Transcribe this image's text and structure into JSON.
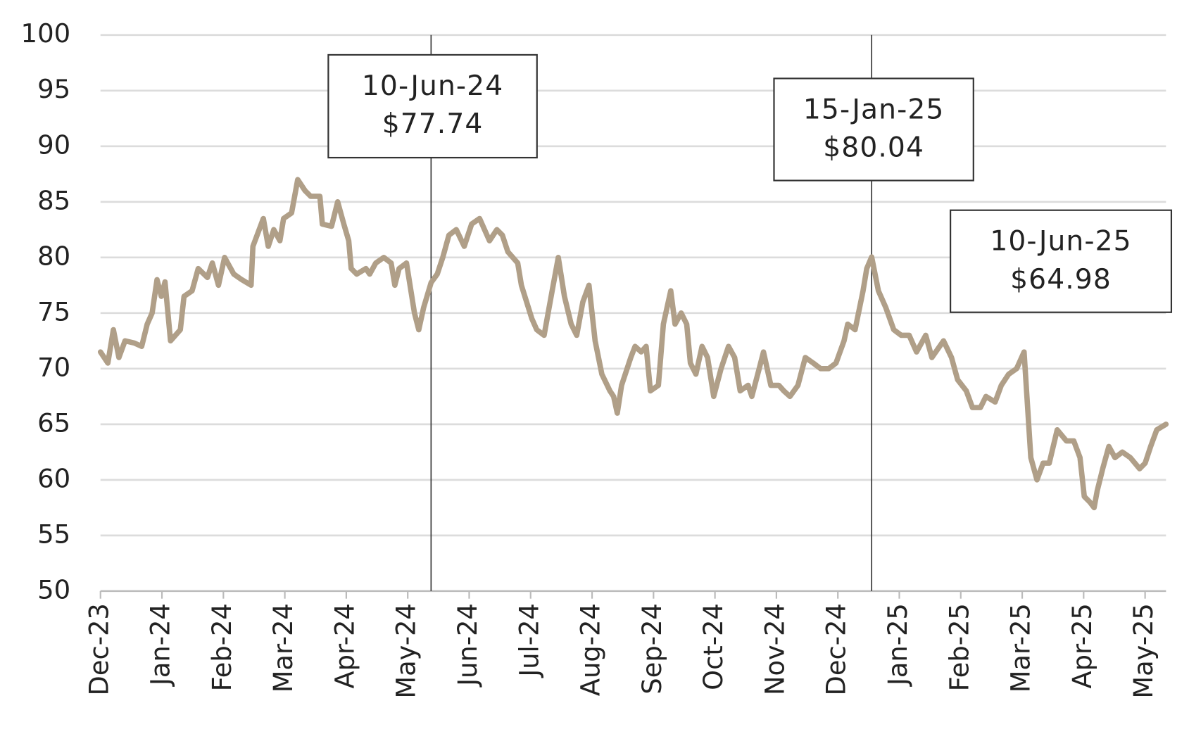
{
  "chart_data": {
    "type": "line",
    "x": [
      0,
      0.12,
      0.21,
      0.3,
      0.4,
      0.55,
      0.67,
      0.76,
      0.84,
      0.92,
      0.99,
      1.05,
      1.14,
      1.3,
      1.36,
      1.49,
      1.59,
      1.74,
      1.82,
      1.92,
      2.02,
      2.17,
      2.3,
      2.45,
      2.48,
      2.65,
      2.73,
      2.82,
      2.92,
      2.98,
      3.11,
      3.21,
      3.33,
      3.42,
      3.57,
      3.61,
      3.76,
      3.86,
      3.96,
      4.04,
      4.08,
      4.17,
      4.32,
      4.38,
      4.48,
      4.61,
      4.73,
      4.79,
      4.86,
      4.98,
      5.11,
      5.18,
      5.26,
      5.38,
      5.48,
      5.57,
      5.67,
      5.79,
      5.92,
      6.04,
      6.17,
      6.33,
      6.45,
      6.54,
      6.63,
      6.79,
      6.85,
      7.02,
      7.1,
      7.22,
      7.35,
      7.45,
      7.55,
      7.66,
      7.75,
      7.85,
      7.95,
      8.05,
      8.16,
      8.29,
      8.35,
      8.41,
      8.48,
      8.63,
      8.7,
      8.8,
      8.88,
      8.95,
      9.08,
      9.16,
      9.28,
      9.35,
      9.45,
      9.54,
      9.6,
      9.69,
      9.79,
      9.88,
      9.98,
      10.1,
      10.22,
      10.32,
      10.41,
      10.54,
      10.6,
      10.72,
      10.79,
      10.91,
      11.04,
      11.12,
      11.22,
      11.35,
      11.47,
      11.6,
      11.72,
      11.85,
      11.97,
      12.1,
      12.16,
      12.28,
      12.41,
      12.47,
      12.55,
      12.66,
      12.78,
      12.91,
      13.03,
      13.16,
      13.28,
      13.43,
      13.53,
      13.72,
      13.85,
      13.95,
      14.09,
      14.19,
      14.32,
      14.41,
      14.56,
      14.66,
      14.78,
      14.91,
      15.03,
      15.14,
      15.24,
      15.34,
      15.44,
      15.57,
      15.72,
      15.84,
      15.94,
      16.01,
      16.1,
      16.17,
      16.22,
      16.31,
      16.41,
      16.51,
      16.63,
      16.76,
      16.91,
      17.0,
      17.09,
      17.19,
      17.34
    ],
    "series": [
      {
        "color": "#b09f88",
        "values": [
          71.5,
          70.5,
          73.5,
          71,
          72.5,
          72.3,
          72,
          74,
          75,
          78,
          76.5,
          77.8,
          72.5,
          73.5,
          76.5,
          77,
          79,
          78.2,
          79.5,
          77.5,
          80,
          78.5,
          78,
          77.5,
          81,
          83.5,
          81,
          82.5,
          81.5,
          83.5,
          84,
          87,
          86,
          85.5,
          85.5,
          83,
          82.8,
          85,
          83,
          81.5,
          79,
          78.5,
          79,
          78.5,
          79.5,
          80,
          79.5,
          77.5,
          79,
          79.5,
          75,
          73.5,
          75.5,
          77.74,
          78.5,
          80,
          82,
          82.5,
          81,
          83,
          83.5,
          81.5,
          82.5,
          82,
          80.5,
          79.5,
          77.5,
          74.5,
          73.5,
          73,
          77,
          80,
          76.5,
          74,
          73,
          76,
          77.5,
          72.5,
          69.5,
          68,
          67.5,
          66,
          68.5,
          71,
          72,
          71.5,
          72,
          68,
          68.5,
          74,
          77,
          74,
          75,
          74,
          70.5,
          69.5,
          72,
          71,
          67.5,
          70,
          72,
          71,
          68,
          68.5,
          67.5,
          70,
          71.5,
          68.5,
          68.5,
          68,
          67.5,
          68.5,
          71,
          70.5,
          70,
          70,
          70.5,
          72.5,
          74,
          73.5,
          77,
          79,
          80.04,
          77,
          75.5,
          73.5,
          73,
          73,
          71.5,
          73,
          71,
          72.5,
          71,
          69,
          68,
          66.5,
          66.5,
          67.5,
          67,
          68.5,
          69.5,
          70,
          71.5,
          62,
          60,
          61.5,
          61.5,
          64.5,
          63.5,
          63.5,
          62,
          58.5,
          58,
          57.5,
          59,
          61,
          63,
          62,
          62.5,
          62,
          61,
          61.5,
          63,
          64.5,
          65
        ]
      }
    ],
    "xlim": [
      0,
      17.34
    ],
    "xticks": [
      {
        "value": 0,
        "label": "Dec-23"
      },
      {
        "value": 1,
        "label": "Jan-24"
      },
      {
        "value": 2,
        "label": "Feb-24"
      },
      {
        "value": 3,
        "label": "Mar-24"
      },
      {
        "value": 4,
        "label": "Apr-24"
      },
      {
        "value": 5,
        "label": "May-24"
      },
      {
        "value": 6,
        "label": "Jun-24"
      },
      {
        "value": 7,
        "label": "Jul-24"
      },
      {
        "value": 8,
        "label": "Aug-24"
      },
      {
        "value": 9,
        "label": "Sep-24"
      },
      {
        "value": 10,
        "label": "Oct-24"
      },
      {
        "value": 11,
        "label": "Nov-24"
      },
      {
        "value": 12,
        "label": "Dec-24"
      },
      {
        "value": 13,
        "label": "Jan-25"
      },
      {
        "value": 14,
        "label": "Feb-25"
      },
      {
        "value": 15,
        "label": "Mar-25"
      },
      {
        "value": 16,
        "label": "Apr-25"
      },
      {
        "value": 17,
        "label": "May-25"
      }
    ],
    "ylim": [
      50,
      100
    ],
    "yticks": [
      50,
      55,
      60,
      65,
      70,
      75,
      80,
      85,
      90,
      95,
      100
    ],
    "grid": true,
    "annotations": [
      {
        "x": 5.38,
        "date": "10-Jun-24",
        "price": "$77.74"
      },
      {
        "x": 12.55,
        "date": "15-Jan-25",
        "price": "$80.04"
      },
      {
        "date": "10-Jun-25",
        "price": "$64.98"
      }
    ]
  }
}
